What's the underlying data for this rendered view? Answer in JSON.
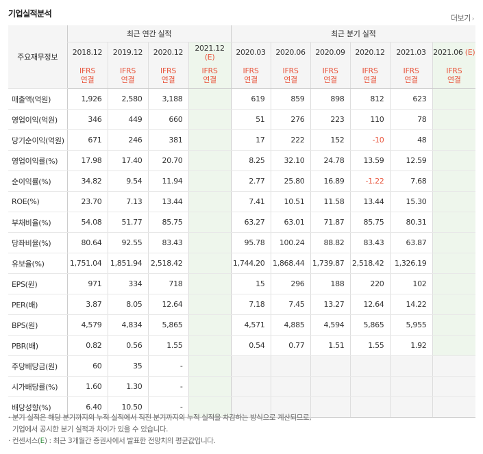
{
  "title": "기업실적분석",
  "more_label": "더보기",
  "header": {
    "row_label": "주요재무정보",
    "group_annual": "최근 연간 실적",
    "group_quarter": "최근 분기 실적",
    "periods": [
      "2018.12",
      "2019.12",
      "2020.12",
      "2021.12",
      "2020.03",
      "2020.06",
      "2020.09",
      "2020.12",
      "2021.03",
      "2021.06"
    ],
    "est_mark": "(E)",
    "ifrs": "IFRS",
    "basis": "연결"
  },
  "rows": [
    {
      "label": "매출액(억원)",
      "values": [
        "1,926",
        "2,580",
        "3,188",
        "",
        "619",
        "859",
        "898",
        "812",
        "623",
        ""
      ]
    },
    {
      "label": "영업이익(억원)",
      "values": [
        "346",
        "449",
        "660",
        "",
        "51",
        "276",
        "223",
        "110",
        "78",
        ""
      ]
    },
    {
      "label": "당기순이익(억원)",
      "values": [
        "671",
        "246",
        "381",
        "",
        "17",
        "222",
        "152",
        "-10",
        "48",
        ""
      ]
    },
    {
      "label": "영업이익률(%)",
      "values": [
        "17.98",
        "17.40",
        "20.70",
        "",
        "8.25",
        "32.10",
        "24.78",
        "13.59",
        "12.59",
        ""
      ]
    },
    {
      "label": "순이익률(%)",
      "values": [
        "34.82",
        "9.54",
        "11.94",
        "",
        "2.77",
        "25.80",
        "16.89",
        "-1.22",
        "7.68",
        ""
      ]
    },
    {
      "label": "ROE(%)",
      "values": [
        "23.70",
        "7.13",
        "13.44",
        "",
        "7.41",
        "10.51",
        "11.58",
        "13.44",
        "15.30",
        ""
      ]
    },
    {
      "label": "부채비율(%)",
      "values": [
        "54.08",
        "51.77",
        "85.75",
        "",
        "63.27",
        "63.01",
        "71.87",
        "85.75",
        "80.31",
        ""
      ]
    },
    {
      "label": "당좌비율(%)",
      "values": [
        "80.64",
        "92.55",
        "83.43",
        "",
        "95.78",
        "100.24",
        "88.82",
        "83.43",
        "63.87",
        ""
      ]
    },
    {
      "label": "유보율(%)",
      "values": [
        "1,751.04",
        "1,851.94",
        "2,518.42",
        "",
        "1,744.20",
        "1,868.44",
        "1,739.87",
        "2,518.42",
        "1,326.19",
        ""
      ]
    },
    {
      "label": "EPS(원)",
      "values": [
        "971",
        "334",
        "718",
        "",
        "15",
        "296",
        "188",
        "220",
        "102",
        ""
      ]
    },
    {
      "label": "PER(배)",
      "values": [
        "3.87",
        "8.05",
        "12.64",
        "",
        "7.18",
        "7.45",
        "13.27",
        "12.64",
        "14.22",
        ""
      ]
    },
    {
      "label": "BPS(원)",
      "values": [
        "4,579",
        "4,834",
        "5,865",
        "",
        "4,571",
        "4,885",
        "4,594",
        "5,865",
        "5,955",
        ""
      ]
    },
    {
      "label": "PBR(배)",
      "values": [
        "0.82",
        "0.56",
        "1.55",
        "",
        "0.54",
        "0.77",
        "1.51",
        "1.55",
        "1.92",
        ""
      ]
    },
    {
      "label": "주당배당금(원)",
      "values": [
        "60",
        "35",
        "-",
        "",
        "",
        "",
        "",
        "",
        "",
        ""
      ]
    },
    {
      "label": "시가배당률(%)",
      "values": [
        "1.60",
        "1.30",
        "-",
        "",
        "",
        "",
        "",
        "",
        "",
        ""
      ]
    },
    {
      "label": "배당성향(%)",
      "values": [
        "6.40",
        "10.50",
        "-",
        "",
        "",
        "",
        "",
        "",
        "",
        ""
      ]
    }
  ],
  "notes": {
    "line1": "분기 실적은 해당 분기까지의 누적 실적에서 직전 분기까지의 누적 실적을 차감하는 방식으로 계산되므로,",
    "line2": "기업에서 공시한 분기 실적과 차이가 있을 수 있습니다.",
    "line3_pre": "컨센서스(",
    "line3_e": "E",
    "line3_post": ") : 최근 3개월간 증권사에서 발표한 전망치의 평균값입니다."
  },
  "colors": {
    "accent": "#e8553d",
    "estimate_bg": "#eef6ec",
    "header_bg": "#f5f5f5",
    "consensus_e": "#2e8b3a"
  }
}
